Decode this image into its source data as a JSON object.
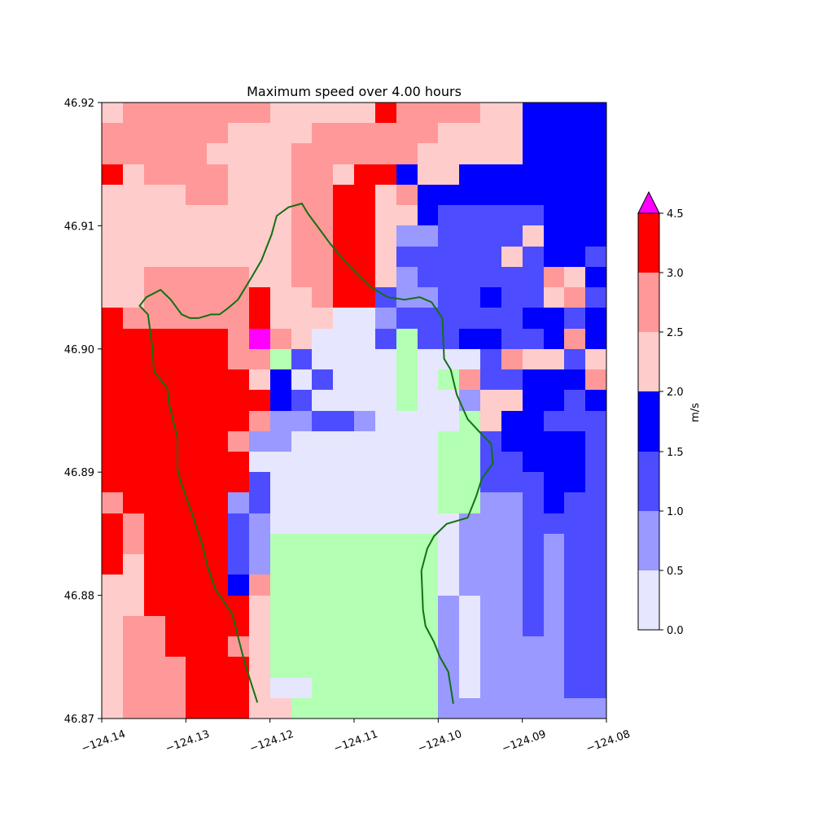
{
  "chart_data": {
    "type": "heatmap",
    "title": "Maximum speed over 4.00 hours",
    "xlim": [
      -124.14,
      -124.08
    ],
    "ylim": [
      46.87,
      46.92
    ],
    "x_ticks": [
      -124.14,
      -124.13,
      -124.12,
      -124.11,
      -124.1,
      -124.09,
      -124.08
    ],
    "x_tick_labels": [
      "−124.14",
      "−124.13",
      "−124.12",
      "−124.11",
      "−124.10",
      "−124.09",
      "−124.08"
    ],
    "y_ticks": [
      46.87,
      46.88,
      46.89,
      46.9,
      46.91,
      46.92
    ],
    "y_tick_labels": [
      "46.87",
      "46.88",
      "46.89",
      "46.90",
      "46.91",
      "46.92"
    ],
    "grid": false,
    "colorbar": {
      "label": "m/s",
      "levels": [
        0.0,
        0.5,
        1.0,
        1.5,
        2.0,
        2.5,
        3.0,
        4.5
      ],
      "tick_labels": [
        "0.0",
        "0.5",
        "1.0",
        "1.5",
        "2.0",
        "2.5",
        "3.0",
        "4.5"
      ],
      "colors": [
        "#e6e6ff",
        "#9999ff",
        "#4d4dff",
        "#0000ff",
        "#ffcccc",
        "#ff9999",
        "#ff0000"
      ],
      "over_color": "#ff00ff",
      "extend": "max"
    },
    "neutral_color": "#b3ffb3",
    "grid_size": {
      "cols": 24,
      "rows": 30
    },
    "cell_codes": "0 = 0.0–0.5, 1 = 0.5–1.0, 2 = 1.0–1.5, 3 = 1.5–2.0, 4 = 2.0–2.5, 5 = 2.5–3.0, 6 = 3.0–4.5, 7 = above 4.5, 8 = neutral",
    "cells": [
      "455555554444465555443333",
      "555555444455555544443333",
      "555554444555555444443333",
      "645555444554663443333333",
      "444455444556645333333333",
      "444444444556644322222333",
      "444444444556641122224333",
      "444444444556642222242332",
      "445555544556641222222543",
      "445555564456621122322452",
      "655555564440012222223323",
      "666666575400028223322353",
      "666666558200008000254424",
      "666666643020008085223335",
      "666666663200008001443323",
      "666666651122100008433222",
      "666666511000000088233332",
      "666666600000000088223332",
      "666666620000000088222332",
      "566666120000000088112322",
      "656666210000000001112222",
      "656666218888888801112122",
      "646666218888888801112122",
      "446666358888888801112122",
      "446666648888888810112122",
      "455666648888888810112122",
      "455666548888888810111122",
      "455566648888888810111122",
      "455566640088888810111122",
      "455566644888888811111111"
    ],
    "coastline": [
      [
        -124.1215,
        46.8713
      ],
      [
        -124.123,
        46.8745
      ],
      [
        -124.1245,
        46.8785
      ],
      [
        -124.1265,
        46.8805
      ],
      [
        -124.1275,
        46.8825
      ],
      [
        -124.128,
        46.884
      ],
      [
        -124.1292,
        46.8865
      ],
      [
        -124.1305,
        46.889
      ],
      [
        -124.131,
        46.8902
      ],
      [
        -124.131,
        46.8928
      ],
      [
        -124.132,
        46.8955
      ],
      [
        -124.1322,
        46.8968
      ],
      [
        -124.1338,
        46.8982
      ],
      [
        -124.134,
        46.9002
      ],
      [
        -124.1345,
        46.9028
      ],
      [
        -124.1355,
        46.9035
      ],
      [
        -124.1347,
        46.9042
      ],
      [
        -124.133,
        46.9048
      ],
      [
        -124.1318,
        46.904
      ],
      [
        -124.1305,
        46.9028
      ],
      [
        -124.1295,
        46.9025
      ],
      [
        -124.1285,
        46.9025
      ],
      [
        -124.127,
        46.9028
      ],
      [
        -124.126,
        46.9028
      ],
      [
        -124.125,
        46.9033
      ],
      [
        -124.1238,
        46.904
      ],
      [
        -124.1222,
        46.9058
      ],
      [
        -124.121,
        46.9072
      ],
      [
        -124.1198,
        46.9093
      ],
      [
        -124.1192,
        46.9108
      ],
      [
        -124.1178,
        46.9115
      ],
      [
        -124.1162,
        46.9118
      ],
      [
        -124.1155,
        46.911
      ],
      [
        -124.1142,
        46.9098
      ],
      [
        -124.1128,
        46.9085
      ],
      [
        -124.1112,
        46.9072
      ],
      [
        -124.1095,
        46.906
      ],
      [
        -124.108,
        46.905
      ],
      [
        -124.106,
        46.9042
      ],
      [
        -124.104,
        46.904
      ],
      [
        -124.1022,
        46.9042
      ],
      [
        -124.1008,
        46.9038
      ],
      [
        -124.0995,
        46.9025
      ],
      [
        -124.0993,
        46.8992
      ],
      [
        -124.0985,
        46.8983
      ],
      [
        -124.0978,
        46.8963
      ],
      [
        -124.0965,
        46.8943
      ],
      [
        -124.095,
        46.8932
      ],
      [
        -124.0937,
        46.8923
      ],
      [
        -124.0935,
        46.8907
      ],
      [
        -124.0948,
        46.8895
      ],
      [
        -124.0955,
        46.888
      ],
      [
        -124.0965,
        46.8863
      ],
      [
        -124.099,
        46.8858
      ],
      [
        -124.1005,
        46.8848
      ],
      [
        -124.1013,
        46.8838
      ],
      [
        -124.102,
        46.882
      ],
      [
        -124.1018,
        46.8788
      ],
      [
        -124.1015,
        46.8775
      ],
      [
        -124.1005,
        46.8762
      ],
      [
        -124.0998,
        46.875
      ],
      [
        -124.0988,
        46.8738
      ],
      [
        -124.0982,
        46.8712
      ]
    ],
    "coastline_color": "#137013"
  }
}
